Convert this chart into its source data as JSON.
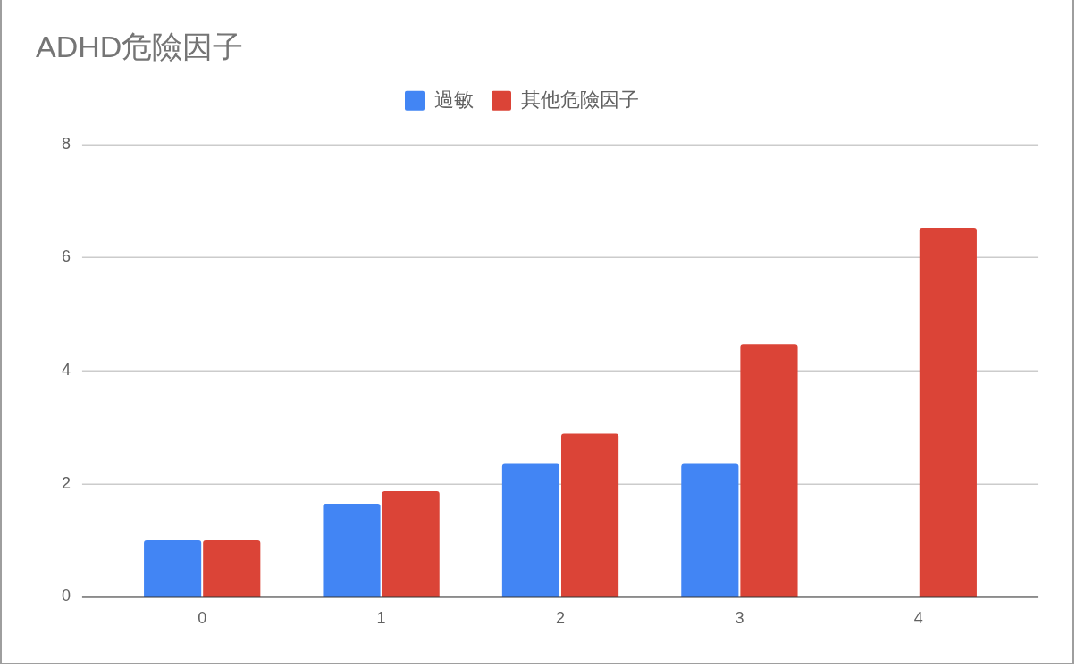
{
  "chart_data": {
    "type": "bar",
    "title": "ADHD危險因子",
    "categories": [
      "0",
      "1",
      "2",
      "3",
      "4"
    ],
    "series": [
      {
        "name": "過敏",
        "color": "#4285f4",
        "values": [
          1,
          1.65,
          2.35,
          2.35,
          null
        ]
      },
      {
        "name": "其他危險因子",
        "color": "#db4437",
        "values": [
          1,
          1.87,
          2.89,
          4.47,
          6.53
        ]
      }
    ],
    "ylim": [
      0,
      8
    ],
    "yticks": [
      0,
      2,
      4,
      6,
      8
    ],
    "grid": "y",
    "legend": "top"
  }
}
